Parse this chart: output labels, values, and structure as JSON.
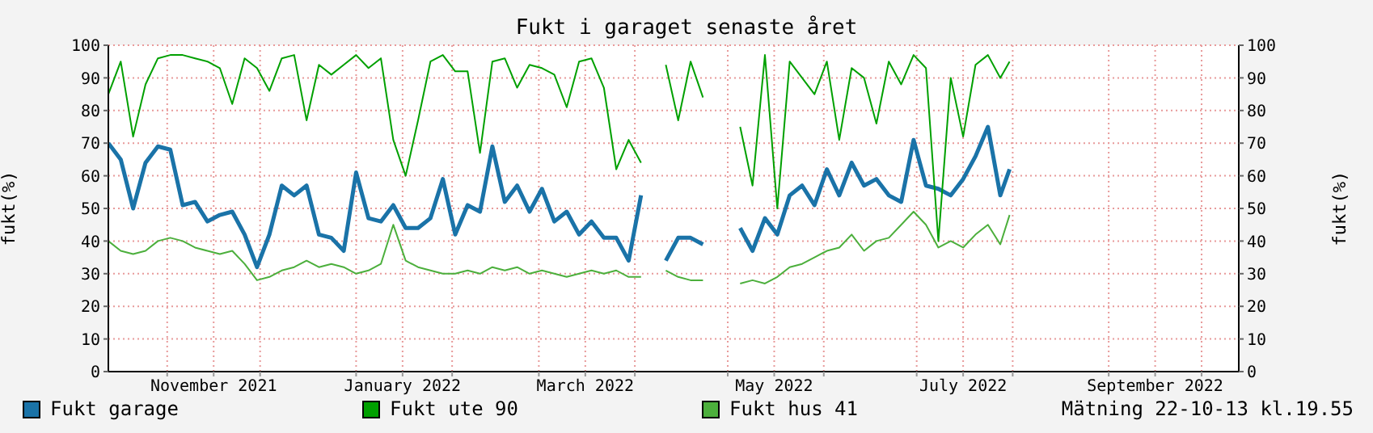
{
  "chart_data": {
    "type": "line",
    "title": "Fukt i garaget senaste året",
    "ylabel": "fukt(%)",
    "y2label": "fukt(%)",
    "x": [
      "2021-10-13",
      "2021-10-17",
      "2021-10-21",
      "2021-10-25",
      "2021-10-29",
      "2021-11-02",
      "2021-11-06",
      "2021-11-10",
      "2021-11-14",
      "2021-11-18",
      "2021-11-22",
      "2021-11-26",
      "2021-11-30",
      "2021-12-04",
      "2021-12-08",
      "2021-12-12",
      "2021-12-16",
      "2021-12-20",
      "2021-12-24",
      "2021-12-28",
      "2022-01-01",
      "2022-01-05",
      "2022-01-09",
      "2022-01-13",
      "2022-01-17",
      "2022-01-21",
      "2022-01-25",
      "2022-01-29",
      "2022-02-02",
      "2022-02-06",
      "2022-02-10",
      "2022-02-14",
      "2022-02-18",
      "2022-02-22",
      "2022-02-26",
      "2022-03-02",
      "2022-03-06",
      "2022-03-10",
      "2022-03-14",
      "2022-03-18",
      "2022-03-22",
      "2022-03-26",
      "2022-03-30",
      "2022-04-03",
      "2022-04-07",
      "2022-04-11",
      "2022-04-15",
      "2022-04-19",
      "2022-04-23",
      "2022-04-27",
      "2022-05-01",
      "2022-05-05",
      "2022-05-09",
      "2022-05-13",
      "2022-05-17",
      "2022-05-21",
      "2022-05-25",
      "2022-05-29",
      "2022-06-02",
      "2022-06-06",
      "2022-06-10",
      "2022-06-14",
      "2022-06-18",
      "2022-06-22",
      "2022-06-26",
      "2022-06-30",
      "2022-07-04",
      "2022-07-08",
      "2022-07-12",
      "2022-07-16",
      "2022-07-20",
      "2022-07-24",
      "2022-07-28",
      "2022-07-31"
    ],
    "series": [
      {
        "name": "Fukt garage",
        "color": "#1a73a8",
        "values": [
          70,
          65,
          50,
          64,
          69,
          68,
          51,
          52,
          46,
          48,
          49,
          42,
          32,
          42,
          57,
          54,
          57,
          42,
          41,
          37,
          61,
          47,
          46,
          51,
          44,
          44,
          47,
          59,
          42,
          51,
          49,
          69,
          52,
          57,
          49,
          56,
          46,
          49,
          42,
          46,
          41,
          41,
          34,
          54,
          null,
          34,
          41,
          41,
          39,
          null,
          null,
          44,
          37,
          47,
          42,
          54,
          57,
          51,
          62,
          54,
          64,
          57,
          59,
          54,
          52,
          71,
          57,
          56,
          54,
          59,
          66,
          75,
          54,
          62
        ]
      },
      {
        "name": "Fukt ute 90",
        "color": "#00a000",
        "values": [
          85,
          95,
          72,
          88,
          96,
          97,
          97,
          96,
          95,
          93,
          82,
          96,
          93,
          86,
          96,
          97,
          77,
          94,
          91,
          94,
          97,
          93,
          96,
          71,
          60,
          77,
          95,
          97,
          92,
          92,
          67,
          95,
          96,
          87,
          94,
          93,
          91,
          81,
          95,
          96,
          87,
          62,
          71,
          64,
          null,
          94,
          77,
          95,
          84,
          null,
          null,
          75,
          57,
          97,
          50,
          95,
          90,
          85,
          95,
          71,
          93,
          90,
          76,
          95,
          88,
          97,
          93,
          40,
          90,
          72,
          94,
          97,
          90,
          95
        ]
      },
      {
        "name": "Fukt hus 41",
        "color": "#4caf3c",
        "values": [
          40,
          37,
          36,
          37,
          40,
          41,
          40,
          38,
          37,
          36,
          37,
          33,
          28,
          29,
          31,
          32,
          34,
          32,
          33,
          32,
          30,
          31,
          33,
          45,
          34,
          32,
          31,
          30,
          30,
          31,
          30,
          32,
          31,
          32,
          30,
          31,
          30,
          29,
          30,
          31,
          30,
          31,
          29,
          29,
          null,
          31,
          29,
          28,
          28,
          null,
          null,
          27,
          28,
          27,
          29,
          32,
          33,
          35,
          37,
          38,
          42,
          37,
          40,
          41,
          45,
          49,
          45,
          38,
          40,
          38,
          42,
          45,
          39,
          48
        ]
      }
    ],
    "xlim": [
      "2021-10-13",
      "2022-10-13"
    ],
    "xticks": [
      {
        "value": "2021-11-01",
        "label": null
      },
      {
        "value": "2021-11-16",
        "label": "November 2021"
      },
      {
        "value": "2021-12-01",
        "label": null
      },
      {
        "value": "2022-01-01",
        "label": null
      },
      {
        "value": "2022-01-16",
        "label": "January 2022"
      },
      {
        "value": "2022-02-01",
        "label": null
      },
      {
        "value": "2022-03-01",
        "label": null
      },
      {
        "value": "2022-03-16",
        "label": "March 2022"
      },
      {
        "value": "2022-04-01",
        "label": null
      },
      {
        "value": "2022-05-01",
        "label": null
      },
      {
        "value": "2022-05-16",
        "label": "May 2022"
      },
      {
        "value": "2022-06-01",
        "label": null
      },
      {
        "value": "2022-07-01",
        "label": null
      },
      {
        "value": "2022-07-16",
        "label": "July 2022"
      },
      {
        "value": "2022-08-01",
        "label": null
      },
      {
        "value": "2022-09-01",
        "label": null
      },
      {
        "value": "2022-09-16",
        "label": "September 2022"
      },
      {
        "value": "2022-10-01",
        "label": null
      }
    ],
    "ylim": [
      0,
      100
    ],
    "yticks": [
      0,
      10,
      20,
      30,
      40,
      50,
      60,
      70,
      80,
      90,
      100
    ],
    "y2lim": [
      0,
      100
    ],
    "y2ticks": [
      0,
      10,
      20,
      30,
      40,
      50,
      60,
      70,
      80,
      90,
      100
    ],
    "grid": true,
    "legend": "bottom",
    "marker": "none",
    "line_style": "solid",
    "annotations": [
      "Mätning 22-10-13 kl.19.55"
    ]
  }
}
